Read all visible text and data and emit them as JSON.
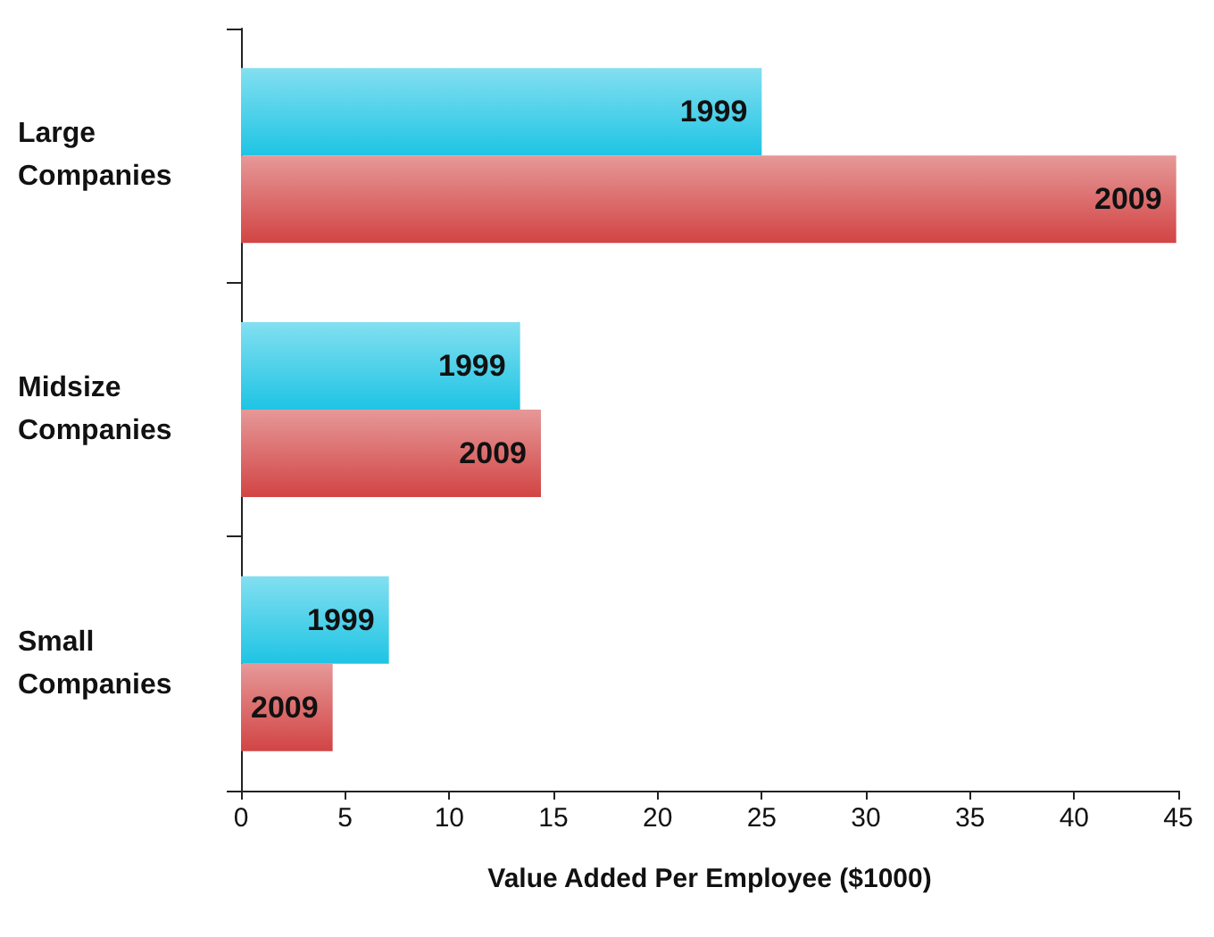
{
  "chart_data": {
    "type": "bar",
    "orientation": "horizontal",
    "xlabel": "Value Added Per Employee ($1000)",
    "categories": [
      "Large Companies",
      "Midsize Companies",
      "Small Companies"
    ],
    "series": [
      {
        "name": "1999",
        "color": "#1ec4e4",
        "values": [
          25,
          13.4,
          7.1
        ]
      },
      {
        "name": "2009",
        "color": "#d24444",
        "values": [
          44.9,
          14.4,
          4.4
        ]
      }
    ],
    "xlim": [
      0,
      45
    ],
    "xticks": [
      0,
      5,
      10,
      15,
      20,
      25,
      30,
      35,
      40,
      45
    ],
    "grid": false,
    "legend": false
  }
}
